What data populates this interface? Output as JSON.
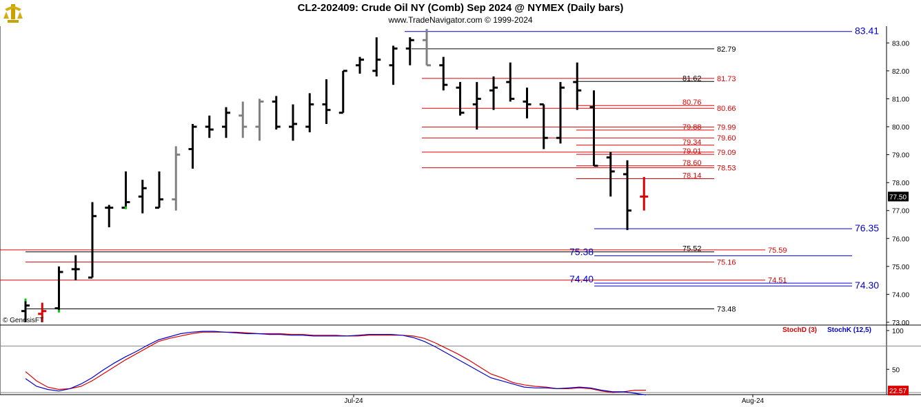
{
  "header": {
    "title": "CL2-202409:  Crude Oil NY (Comb) Sep 2024 @ NYMEX  (Daily bars)",
    "subtitle": "www.TradeNavigator.com © 1999-2024",
    "watermark": "© GenesisFT"
  },
  "colors": {
    "bar_black": "#000000",
    "bar_gray": "#808080",
    "red_level": "#dd0000",
    "blue_level": "#0000cc",
    "black_level": "#000000",
    "stochD": "#dd0000",
    "stochK": "#0000cc",
    "last_price_box": "#000000",
    "stoch_value_box": "#dd0000",
    "grid": "#888888"
  },
  "chart_data": [
    {
      "type": "ohlc",
      "symbol": "CL2-202409",
      "ylim": [
        72.9,
        83.6
      ],
      "y_ticks": [
        "73.00",
        "74.00",
        "75.00",
        "76.00",
        "77.00",
        "78.00",
        "79.00",
        "80.00",
        "81.00",
        "82.00",
        "83.00"
      ],
      "x_ticks": [
        "Jul-24",
        "Aug-24"
      ],
      "last_price": "77.50",
      "bars": [
        {
          "o": 73.4,
          "h": 73.8,
          "l": 73.0,
          "c": 73.6,
          "color": "black",
          "green_marks": [
            73.8
          ]
        },
        {
          "o": 73.3,
          "h": 73.7,
          "l": 73.0,
          "c": 73.4,
          "color": "red"
        },
        {
          "o": 73.5,
          "h": 75.0,
          "l": 73.4,
          "c": 74.8,
          "color": "black",
          "green_marks": [
            73.4
          ]
        },
        {
          "o": 74.9,
          "h": 75.4,
          "l": 74.5,
          "c": 74.9,
          "color": "black"
        },
        {
          "o": 74.6,
          "h": 77.3,
          "l": 74.6,
          "c": 76.8,
          "color": "black"
        },
        {
          "o": 77.1,
          "h": 77.2,
          "l": 76.4,
          "c": 77.1,
          "color": "black"
        },
        {
          "o": 77.1,
          "h": 78.4,
          "l": 77.1,
          "c": 77.3,
          "color": "black",
          "green_marks": [
            77.1
          ]
        },
        {
          "o": 77.5,
          "h": 78.1,
          "l": 76.9,
          "c": 77.8,
          "color": "black"
        },
        {
          "o": 77.1,
          "h": 78.4,
          "l": 77.1,
          "c": 77.4,
          "color": "black"
        },
        {
          "o": 77.4,
          "h": 79.3,
          "l": 77.0,
          "c": 79.0,
          "color": "gray"
        },
        {
          "o": 79.2,
          "h": 80.1,
          "l": 78.5,
          "c": 80.0,
          "color": "black"
        },
        {
          "o": 80.0,
          "h": 80.4,
          "l": 79.6,
          "c": 79.9,
          "color": "black"
        },
        {
          "o": 80.0,
          "h": 80.7,
          "l": 79.6,
          "c": 80.5,
          "color": "black"
        },
        {
          "o": 80.4,
          "h": 80.9,
          "l": 79.6,
          "c": 80.0,
          "color": "gray"
        },
        {
          "o": 80.0,
          "h": 81.0,
          "l": 79.5,
          "c": 80.9,
          "color": "gray"
        },
        {
          "o": 80.9,
          "h": 81.1,
          "l": 79.9,
          "c": 80.0,
          "color": "black"
        },
        {
          "o": 80.0,
          "h": 80.8,
          "l": 79.5,
          "c": 80.1,
          "color": "black"
        },
        {
          "o": 80.0,
          "h": 81.2,
          "l": 79.8,
          "c": 80.8,
          "color": "black"
        },
        {
          "o": 80.8,
          "h": 81.7,
          "l": 80.1,
          "c": 80.6,
          "color": "black"
        },
        {
          "o": 80.5,
          "h": 82.0,
          "l": 80.5,
          "c": 82.0,
          "color": "black"
        },
        {
          "o": 82.2,
          "h": 82.5,
          "l": 81.9,
          "c": 82.4,
          "color": "black"
        },
        {
          "o": 82.0,
          "h": 83.2,
          "l": 81.8,
          "c": 82.4,
          "color": "black"
        },
        {
          "o": 82.2,
          "h": 82.9,
          "l": 81.5,
          "c": 82.8,
          "color": "black"
        },
        {
          "o": 82.8,
          "h": 83.2,
          "l": 82.2,
          "c": 83.1,
          "color": "black"
        },
        {
          "o": 83.1,
          "h": 83.5,
          "l": 82.2,
          "c": 82.2,
          "color": "gray"
        },
        {
          "o": 82.2,
          "h": 82.5,
          "l": 81.3,
          "c": 81.5,
          "color": "black"
        },
        {
          "o": 81.4,
          "h": 81.6,
          "l": 80.4,
          "c": 80.5,
          "color": "black"
        },
        {
          "o": 80.8,
          "h": 81.6,
          "l": 79.9,
          "c": 81.0,
          "color": "black"
        },
        {
          "o": 81.3,
          "h": 81.8,
          "l": 80.6,
          "c": 81.4,
          "color": "black"
        },
        {
          "o": 81.6,
          "h": 82.3,
          "l": 80.9,
          "c": 81.0,
          "color": "black"
        },
        {
          "o": 80.9,
          "h": 81.4,
          "l": 80.3,
          "c": 80.8,
          "color": "black"
        },
        {
          "o": 80.8,
          "h": 80.8,
          "l": 79.2,
          "c": 79.6,
          "color": "black"
        },
        {
          "o": 79.6,
          "h": 81.6,
          "l": 79.4,
          "c": 81.4,
          "color": "black"
        },
        {
          "o": 81.6,
          "h": 82.3,
          "l": 80.6,
          "c": 81.3,
          "color": "black"
        },
        {
          "o": 80.7,
          "h": 81.3,
          "l": 78.6,
          "c": 78.6,
          "color": "black"
        },
        {
          "o": 78.9,
          "h": 79.1,
          "l": 77.5,
          "c": 78.4,
          "color": "black"
        },
        {
          "o": 78.3,
          "h": 78.8,
          "l": 76.3,
          "c": 77.0,
          "color": "black"
        },
        {
          "o": 77.5,
          "h": 78.2,
          "l": 77.0,
          "c": 77.5,
          "color": "red"
        }
      ],
      "levels": [
        {
          "value": "83.41",
          "color": "blue"
        },
        {
          "value": "82.79",
          "color": "black"
        },
        {
          "value": "81.73",
          "color": "red"
        },
        {
          "value": "81.62",
          "color": "black"
        },
        {
          "value": "80.76",
          "color": "red"
        },
        {
          "value": "80.66",
          "color": "red"
        },
        {
          "value": "79.99",
          "color": "red"
        },
        {
          "value": "79.88",
          "color": "red"
        },
        {
          "value": "79.60",
          "color": "red"
        },
        {
          "value": "79.34",
          "color": "red"
        },
        {
          "value": "79.09",
          "color": "red"
        },
        {
          "value": "79.01",
          "color": "red"
        },
        {
          "value": "78.60",
          "color": "red"
        },
        {
          "value": "78.53",
          "color": "red"
        },
        {
          "value": "78.14",
          "color": "red"
        },
        {
          "value": "76.35",
          "color": "blue"
        },
        {
          "value": "75.59",
          "color": "red"
        },
        {
          "value": "75.52",
          "color": "black"
        },
        {
          "value": "75.38",
          "color": "blue"
        },
        {
          "value": "75.16",
          "color": "red"
        },
        {
          "value": "74.51",
          "color": "red"
        },
        {
          "value": "74.40",
          "color": "blue"
        },
        {
          "value": "74.30",
          "color": "blue"
        },
        {
          "value": "73.48",
          "color": "black"
        }
      ]
    },
    {
      "type": "line",
      "ylim": [
        20,
        100
      ],
      "y_ticks": [
        "100",
        "50"
      ],
      "reference_lines": [
        80,
        20
      ],
      "last_value": "22.57",
      "series": [
        {
          "name": "StochD (3)",
          "color": "#dd0000",
          "values": [
            47,
            35,
            27,
            24,
            25,
            28,
            35,
            44,
            53,
            62,
            70,
            78,
            86,
            90,
            93,
            96,
            98,
            98,
            98,
            98,
            97,
            96,
            96,
            96,
            95,
            95,
            94,
            94,
            94,
            93,
            93,
            94,
            94,
            94,
            94,
            93,
            90,
            84,
            77,
            70,
            62,
            53,
            44,
            39,
            33,
            30,
            28,
            27,
            25,
            25,
            26,
            25,
            22,
            20,
            21,
            23,
            23
          ]
        },
        {
          "name": "StochK (12,5)",
          "color": "#0000cc",
          "values": [
            38,
            28,
            24,
            22,
            25,
            31,
            39,
            49,
            58,
            66,
            73,
            81,
            88,
            92,
            96,
            98,
            99,
            99,
            98,
            97,
            96,
            96,
            95,
            95,
            94,
            94,
            93,
            93,
            93,
            93,
            94,
            95,
            95,
            95,
            94,
            91,
            86,
            79,
            71,
            63,
            55,
            47,
            39,
            35,
            31,
            27,
            26,
            26,
            25,
            26,
            27,
            26,
            23,
            21,
            21,
            19,
            17
          ]
        }
      ]
    }
  ],
  "stoch_legend": {
    "d_label": "StochD (3)",
    "k_label": "StochK (12,5)"
  }
}
